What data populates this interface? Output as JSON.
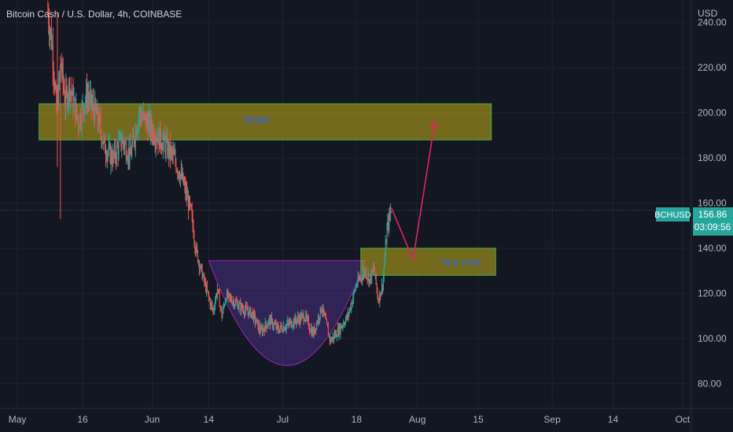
{
  "chart_data": {
    "type": "candlestick",
    "title": "Bitcoin Cash / U.S. Dollar, 4h, COINBASE",
    "symbol": "BCHUSD",
    "currency_label": "USD",
    "last_price": "156.86",
    "countdown": "03:09:56",
    "y_ticks": [
      "240.00",
      "220.00",
      "200.00",
      "180.00",
      "160.00",
      "140.00",
      "120.00",
      "100.00",
      "80.00"
    ],
    "y_tick_values": [
      240,
      220,
      200,
      180,
      160,
      140,
      120,
      100,
      80
    ],
    "ylim": [
      69,
      250
    ],
    "x_ticks": [
      "May",
      "16",
      "Jun",
      "14",
      "Jul",
      "18",
      "Aug",
      "15",
      "Sep",
      "14",
      "Oct"
    ],
    "x_tick_days": [
      0,
      15,
      31,
      44,
      61,
      78,
      92,
      106,
      123,
      137,
      153
    ],
    "x_range_days": [
      -4,
      155
    ],
    "price_path_days": [
      7,
      8,
      9,
      10,
      11,
      12,
      14,
      16,
      18,
      19,
      20,
      22,
      24,
      26,
      28,
      30,
      32,
      34,
      36,
      38,
      40,
      41,
      42,
      43,
      44,
      45,
      46,
      47,
      48,
      50,
      52,
      54,
      56,
      58,
      60,
      62,
      64,
      66,
      68,
      70,
      72,
      74,
      76,
      78,
      80,
      81,
      82,
      83,
      84,
      85,
      86
    ],
    "price_path_values": [
      245,
      230,
      200,
      222,
      205,
      212,
      196,
      208,
      200,
      194,
      185,
      180,
      188,
      181,
      200,
      195,
      190,
      186,
      180,
      170,
      155,
      140,
      132,
      125,
      118,
      112,
      122,
      110,
      119,
      116,
      113,
      111,
      103,
      108,
      104,
      106,
      108,
      110,
      102,
      114,
      99,
      104,
      110,
      124,
      130,
      126,
      131,
      117,
      124,
      148,
      158
    ],
    "annotations": [
      {
        "type": "rectangle",
        "label": "Target",
        "price_top": 204,
        "price_bottom": 188,
        "day_start": 5,
        "day_end": 109,
        "color": "#b5a218"
      },
      {
        "type": "rectangle",
        "label": "buy zone",
        "price_top": 140,
        "price_bottom": 128,
        "day_start": 79,
        "day_end": 110,
        "color": "#b5a218"
      },
      {
        "type": "cup",
        "price_top": 134.5,
        "price_bottom": 88,
        "day_start": 44,
        "day_end": 80,
        "color": "#673ab7"
      },
      {
        "type": "path_arrow",
        "days": [
          86,
          91,
          96
        ],
        "prices": [
          158,
          135,
          196
        ],
        "color": "#e91e63"
      }
    ],
    "colors": {
      "up": "#26a69a",
      "down": "#ef5350",
      "background": "#131722",
      "grid": "#1e222d",
      "axis_text": "#b2b5be",
      "price_label": "#26a69a",
      "annotation_text": "#2962ff"
    },
    "grid": true
  }
}
